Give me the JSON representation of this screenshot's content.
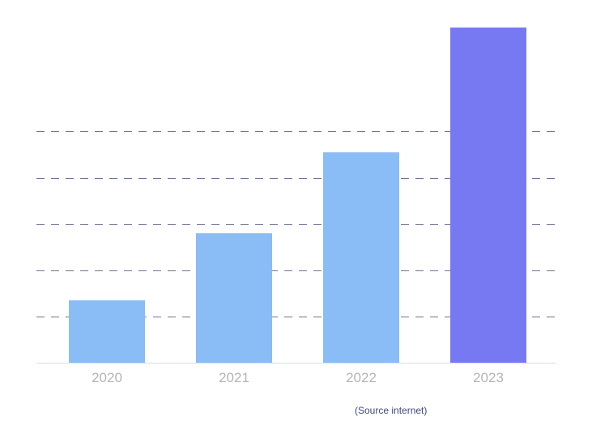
{
  "chart_data": {
    "type": "bar",
    "categories": [
      "2020",
      "2021",
      "2022",
      "2023"
    ],
    "values": [
      1.35,
      2.8,
      4.55,
      7.25
    ],
    "ylim": [
      0,
      7.25
    ],
    "gridlines": [
      1,
      2,
      3,
      4,
      5
    ],
    "grid": true,
    "bar_colors": [
      "#8abcf5",
      "#8abcf5",
      "#8abcf5",
      "#7779f3"
    ],
    "grid_color": "#6e7590",
    "axis_color": "#d6dcf2",
    "tick_label_color": "#b4b4b4"
  },
  "source_note": "(Source internet)"
}
